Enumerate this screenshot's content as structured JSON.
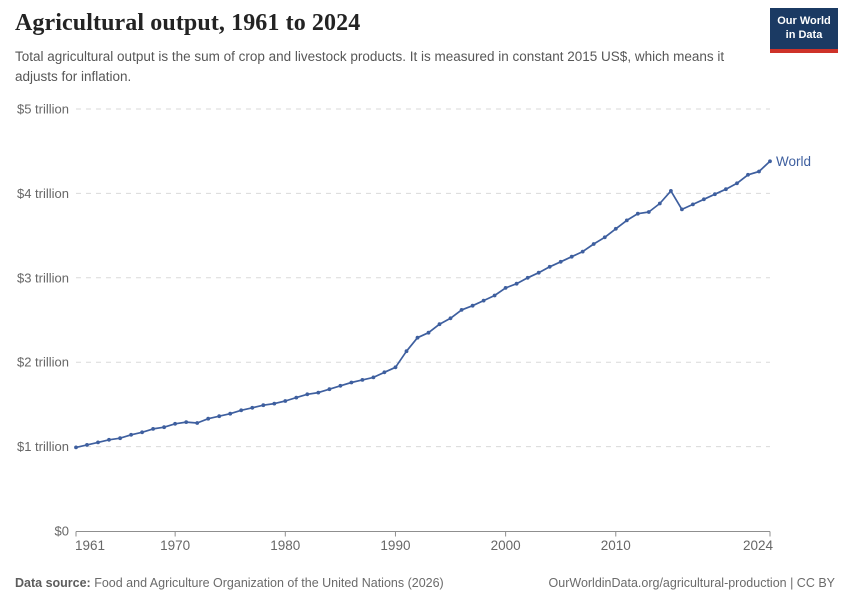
{
  "header": {
    "title": "Agricultural output, 1961 to 2024",
    "subtitle": "Total agricultural output is the sum of crop and livestock products. It is measured in constant 2015 US$, which means it adjusts for inflation.",
    "logo": {
      "line1": "Our World",
      "line2": "in Data"
    }
  },
  "chart_data": {
    "type": "line",
    "title": "Agricultural output, 1961 to 2024",
    "x": [
      1961,
      1962,
      1963,
      1964,
      1965,
      1966,
      1967,
      1968,
      1969,
      1970,
      1971,
      1972,
      1973,
      1974,
      1975,
      1976,
      1977,
      1978,
      1979,
      1980,
      1981,
      1982,
      1983,
      1984,
      1985,
      1986,
      1987,
      1988,
      1989,
      1990,
      1991,
      1992,
      1993,
      1994,
      1995,
      1996,
      1997,
      1998,
      1999,
      2000,
      2001,
      2002,
      2003,
      2004,
      2005,
      2006,
      2007,
      2008,
      2009,
      2010,
      2011,
      2012,
      2013,
      2014,
      2015,
      2016,
      2017,
      2018,
      2019,
      2020,
      2021,
      2022,
      2023,
      2024
    ],
    "series": [
      {
        "name": "World",
        "values": [
          0.99,
          1.02,
          1.05,
          1.08,
          1.1,
          1.14,
          1.17,
          1.21,
          1.23,
          1.27,
          1.29,
          1.28,
          1.33,
          1.36,
          1.39,
          1.43,
          1.46,
          1.49,
          1.51,
          1.54,
          1.58,
          1.62,
          1.64,
          1.68,
          1.72,
          1.76,
          1.79,
          1.82,
          1.88,
          1.94,
          2.13,
          2.29,
          2.35,
          2.45,
          2.52,
          2.62,
          2.67,
          2.73,
          2.79,
          2.88,
          2.93,
          3.0,
          3.06,
          3.13,
          3.19,
          3.25,
          3.31,
          3.4,
          3.48,
          3.58,
          3.68,
          3.76,
          3.78,
          3.88,
          4.03,
          3.81,
          3.87,
          3.93,
          3.99,
          4.05,
          4.12,
          4.22,
          4.26,
          4.38
        ]
      }
    ],
    "end_label": "World",
    "y_ticks": [
      {
        "value": 0,
        "label": "$0"
      },
      {
        "value": 1,
        "label": "$1 trillion"
      },
      {
        "value": 2,
        "label": "$2 trillion"
      },
      {
        "value": 3,
        "label": "$3 trillion"
      },
      {
        "value": 4,
        "label": "$4 trillion"
      },
      {
        "value": 5,
        "label": "$5 trillion"
      }
    ],
    "x_ticks": [
      1961,
      1970,
      1980,
      1990,
      2000,
      2010,
      2024
    ],
    "xlim": [
      1961,
      2024
    ],
    "ylim": [
      0,
      5
    ],
    "grid": "horizontal-dashed",
    "legend_position": "end-of-line"
  },
  "colors": {
    "line": "#3E5F9F",
    "end_label": "#3E5F9F",
    "gridline": "#dadada",
    "axis": "#8f8f8f",
    "tick_text": "#676767",
    "logo_bg": "#1B3A63",
    "logo_stripe": "#CE3229"
  },
  "footer": {
    "source_label": "Data source:",
    "source_text": " Food and Agriculture Organization of the United Nations (2026)",
    "link_text": "OurWorldinData.org/agricultural-production | CC BY"
  }
}
